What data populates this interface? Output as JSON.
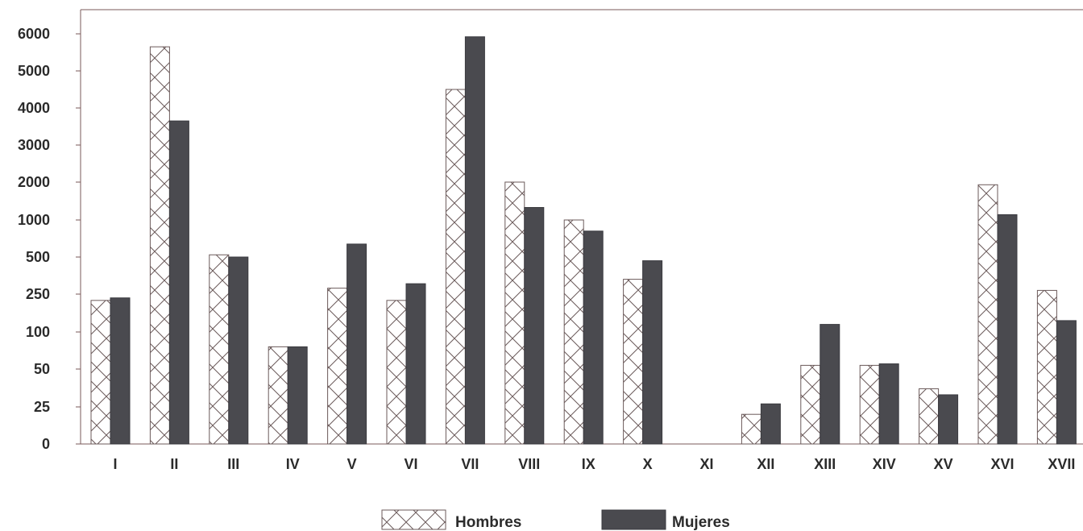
{
  "chart_data": {
    "type": "bar",
    "y_scale": "non-linear (categorical ticks)",
    "ytick_labels": [
      "0",
      "25",
      "50",
      "100",
      "250",
      "500",
      "1000",
      "2000",
      "3000",
      "4000",
      "5000",
      "6000"
    ],
    "categories": [
      "I",
      "II",
      "III",
      "IV",
      "V",
      "VI",
      "VII",
      "VIII",
      "IX",
      "X",
      "XI",
      "XII",
      "XIII",
      "XIV",
      "XV",
      "XVI",
      "XVII"
    ],
    "series": [
      {
        "name": "Hombres",
        "pattern": "crosshatch",
        "values": [
          225,
          5650,
          530,
          80,
          290,
          225,
          4500,
          2000,
          1000,
          350,
          0,
          20,
          55,
          55,
          37,
          1930,
          275
        ]
      },
      {
        "name": "Mujeres",
        "color": "#4a4a4f",
        "values": [
          235,
          3650,
          500,
          80,
          675,
          320,
          5920,
          1330,
          850,
          475,
          0,
          27,
          130,
          57,
          33,
          1140,
          145
        ]
      }
    ],
    "legend_position": "bottom-center",
    "grid": false,
    "colors": {
      "axis": "#7a5a5a",
      "text": "#2b2b2b",
      "hatch": "#6b5a5a"
    }
  }
}
